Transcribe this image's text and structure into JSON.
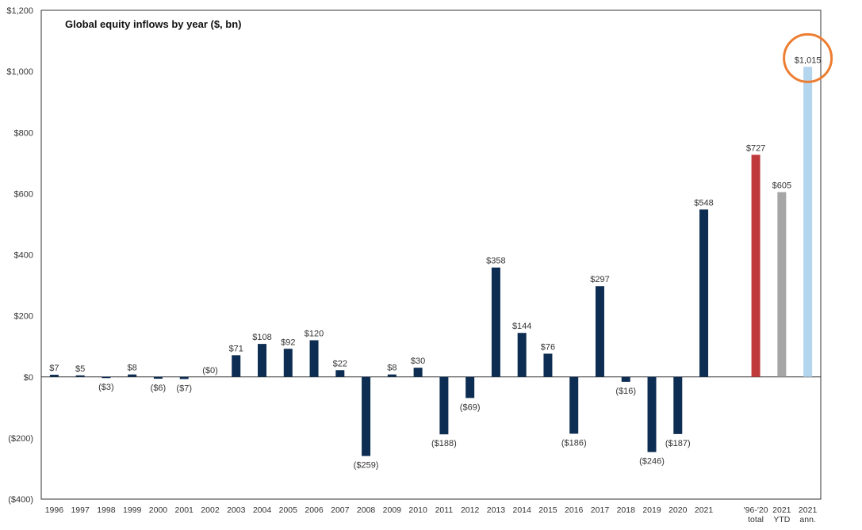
{
  "chart_data": {
    "type": "bar",
    "title": "Global equity inflows by year ($, bn)",
    "xlabel": "",
    "ylabel": "",
    "ylim": [
      -400,
      1200
    ],
    "y_ticks": [
      -400,
      -200,
      0,
      200,
      400,
      600,
      800,
      1000,
      1200
    ],
    "y_tick_labels": [
      "($400)",
      "($200)",
      "$0",
      "$200",
      "$400",
      "$600",
      "$800",
      "$1,000",
      "$1,200"
    ],
    "grid": false,
    "legend": "none",
    "categories": [
      "1996",
      "1997",
      "1998",
      "1999",
      "2000",
      "2001",
      "2002",
      "2003",
      "2004",
      "2005",
      "2006",
      "2007",
      "2008",
      "2009",
      "2010",
      "2011",
      "2012",
      "2013",
      "2014",
      "2015",
      "2016",
      "2017",
      "2018",
      "2019",
      "2020",
      "2021",
      "",
      "'96-'20 total",
      "2021 YTD",
      "2021 ann."
    ],
    "category_lines": [
      [
        "1996"
      ],
      [
        "1997"
      ],
      [
        "1998"
      ],
      [
        "1999"
      ],
      [
        "2000"
      ],
      [
        "2001"
      ],
      [
        "2002"
      ],
      [
        "2003"
      ],
      [
        "2004"
      ],
      [
        "2005"
      ],
      [
        "2006"
      ],
      [
        "2007"
      ],
      [
        "2008"
      ],
      [
        "2009"
      ],
      [
        "2010"
      ],
      [
        "2011"
      ],
      [
        "2012"
      ],
      [
        "2013"
      ],
      [
        "2014"
      ],
      [
        "2015"
      ],
      [
        "2016"
      ],
      [
        "2017"
      ],
      [
        "2018"
      ],
      [
        "2019"
      ],
      [
        "2020"
      ],
      [
        "2021"
      ],
      [],
      [
        "'96-'20",
        "total"
      ],
      [
        "2021",
        "YTD"
      ],
      [
        "2021",
        "ann."
      ]
    ],
    "values": [
      7,
      5,
      -3,
      8,
      -6,
      -7,
      0,
      71,
      108,
      92,
      120,
      22,
      -259,
      8,
      30,
      -188,
      -69,
      358,
      144,
      76,
      -186,
      297,
      -16,
      -246,
      -187,
      548,
      null,
      727,
      605,
      1015
    ],
    "data_labels": [
      "$7",
      "$5",
      "($3)",
      "$8",
      "($6)",
      "($7)",
      "($0)",
      "$71",
      "$108",
      "$92",
      "$120",
      "$22",
      "($259)",
      "$8",
      "$30",
      "($188)",
      "($69)",
      "$358",
      "$144",
      "$76",
      "($186)",
      "$297",
      "($16)",
      "($246)",
      "($187)",
      "$548",
      "",
      "$727",
      "$605",
      "$1,015"
    ],
    "bar_colors": [
      "#0d2d52",
      "#0d2d52",
      "#0d2d52",
      "#0d2d52",
      "#0d2d52",
      "#0d2d52",
      "#0d2d52",
      "#0d2d52",
      "#0d2d52",
      "#0d2d52",
      "#0d2d52",
      "#0d2d52",
      "#0d2d52",
      "#0d2d52",
      "#0d2d52",
      "#0d2d52",
      "#0d2d52",
      "#0d2d52",
      "#0d2d52",
      "#0d2d52",
      "#0d2d52",
      "#0d2d52",
      "#0d2d52",
      "#0d2d52",
      "#0d2d52",
      "#0d2d52",
      "#0d2d52",
      "#c0393b",
      "#a6a6a6",
      "#b4d5ee"
    ],
    "highlight": {
      "category": "2021 ann.",
      "shape": "circle",
      "color": "#ed7d31"
    }
  }
}
